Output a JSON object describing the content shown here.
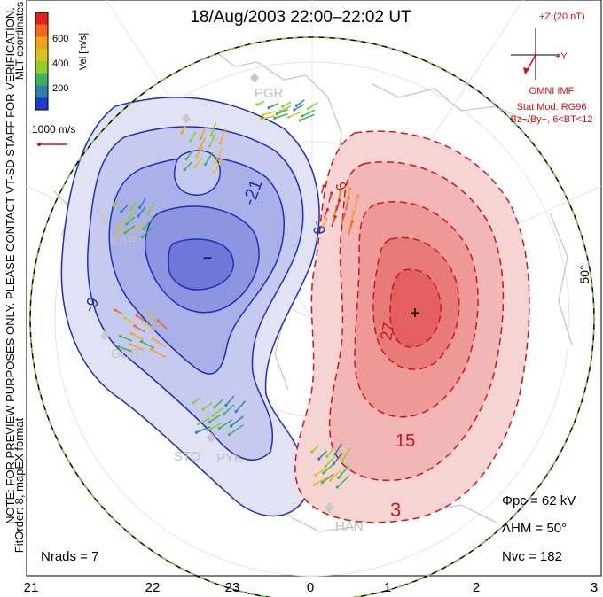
{
  "title": "18/Aug/2003 22:00–22:02 UT",
  "colorbar": {
    "label": "Vel [m/s]",
    "ticks": [
      "600",
      "400",
      "200"
    ],
    "colors": [
      "#e8201a",
      "#f06a18",
      "#f4a21a",
      "#d9c21e",
      "#8fcf2a",
      "#3fb35a",
      "#2f7fb0",
      "#1a3fd0"
    ]
  },
  "side_text": {
    "coords": "MLT coordinates",
    "fitorder": "FitOrder: 8, mapEX format",
    "note": "NOTE: FOR PREVIEW PURPOSES ONLY. PLEASE CONTACT VT-SD STAFF FOR VERIFICATION."
  },
  "scale_vector": {
    "label": "1000 m/s"
  },
  "imf": {
    "bz_label": "+Z (20 nT)",
    "by_label": "+Y",
    "caption": "OMNI IMF",
    "model1": "Stat Mod: RG96",
    "model2": "Bz−/By−, 6<BT<12"
  },
  "latitude_label": "50°",
  "contours": {
    "negative": [
      "-21",
      "-9",
      "-9"
    ],
    "positive": [
      "27",
      "15",
      "3",
      "9"
    ],
    "min_marker": "−",
    "max_marker": "+"
  },
  "stations": [
    "PGR",
    "KAP",
    "GBR",
    "STO",
    "PYK",
    "HAN"
  ],
  "stats": {
    "phi_pc": "Φpc = 62 kV",
    "lambda_hm": "ΛHM = 50°",
    "n_vc": "Nvc = 182",
    "n_rads": "Nrads = 7"
  },
  "mlt_ticks": [
    "21",
    "22",
    "23",
    "0",
    "1",
    "2",
    "3"
  ],
  "colors": {
    "negative_fill": "#5a63dc",
    "positive_fill": "#e94a4a",
    "negative_line": "#1f2fb8",
    "positive_line": "#c81818",
    "imf_text": "#d01010"
  }
}
